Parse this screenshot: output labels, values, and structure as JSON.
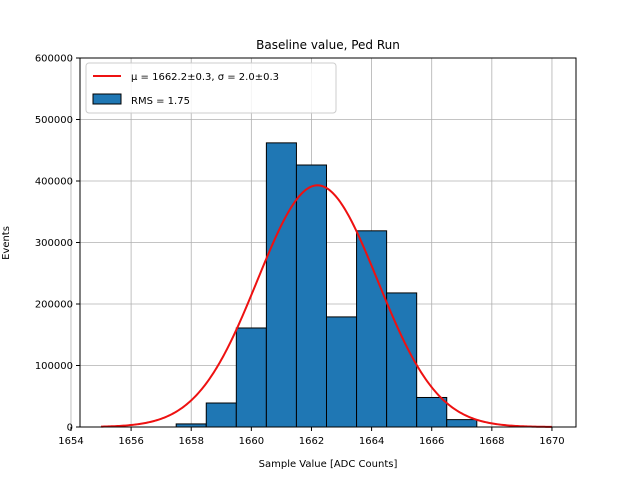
{
  "chart_data": {
    "type": "bar",
    "title": "Baseline value, Ped Run",
    "xlabel": "Sample Value [ADC Counts]",
    "ylabel": "Events",
    "xlim": [
      1654.3,
      1670.8
    ],
    "ylim": [
      0,
      600000
    ],
    "xticks": [
      "1654",
      "1656",
      "1658",
      "1660",
      "1662",
      "1664",
      "1666",
      "1668",
      "1670"
    ],
    "yticks": [
      "0",
      "100000",
      "200000",
      "300000",
      "400000",
      "500000",
      "600000"
    ],
    "grid": true,
    "legend_position": "upper-left",
    "histogram": {
      "name": "RMS = 1.75",
      "color": "#1f77b4",
      "edge_color": "#000000",
      "bin_edges": [
        1657.5,
        1658.5,
        1659.5,
        1660.5,
        1661.5,
        1662.5,
        1663.5,
        1664.5,
        1665.5,
        1666.5,
        1667.5
      ],
      "values": [
        5000,
        39000,
        161000,
        462000,
        426000,
        179000,
        319000,
        218000,
        48000,
        12000
      ]
    },
    "fit": {
      "name": "μ = 1662.2±0.3, σ = 2.0±0.3",
      "color": "#ee1111",
      "mu": 1662.2,
      "sigma": 2.0,
      "amplitude": 393000,
      "x_range": [
        1655,
        1670
      ]
    }
  }
}
